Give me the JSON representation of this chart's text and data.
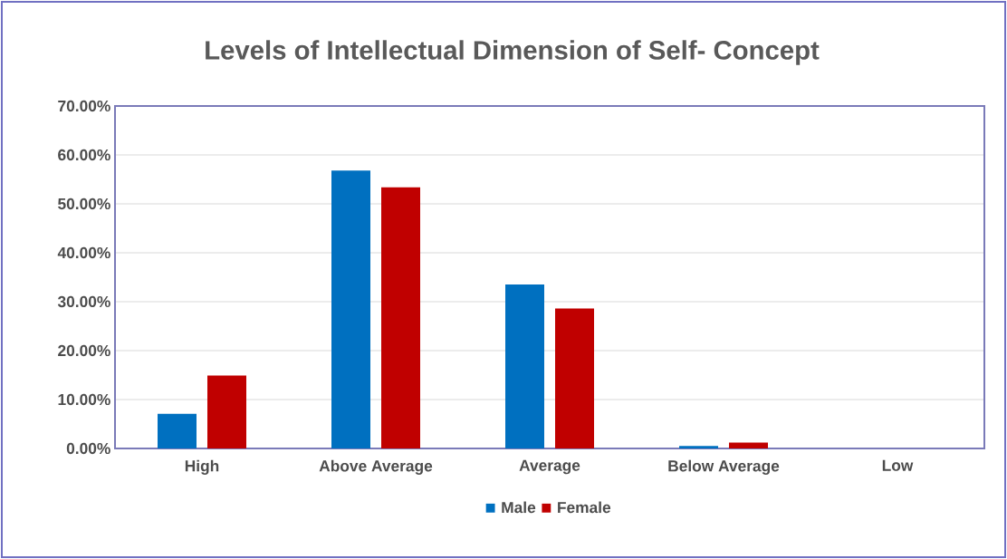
{
  "chart_data": {
    "type": "bar",
    "title": "Levels of Intellectual Dimension of Self- Concept",
    "categories": [
      "High",
      "Above Average",
      "Average",
      "Below Average",
      "Low"
    ],
    "series": [
      {
        "name": "Male",
        "color": "#0070c0",
        "values": [
          7.1,
          56.8,
          33.5,
          0.5,
          0
        ]
      },
      {
        "name": "Female",
        "color": "#c00000",
        "values": [
          14.9,
          53.4,
          28.6,
          1.2,
          0
        ]
      }
    ],
    "ylim": [
      0,
      70
    ],
    "yticks": [
      {
        "value": 0,
        "label": "0.00%"
      },
      {
        "value": 10,
        "label": "10.00%"
      },
      {
        "value": 20,
        "label": "20.00%"
      },
      {
        "value": 30,
        "label": "30.00%"
      },
      {
        "value": 40,
        "label": "40.00%"
      },
      {
        "value": 50,
        "label": "50.00%"
      },
      {
        "value": 60,
        "label": "60.00%"
      },
      {
        "value": 70,
        "label": "70.00%"
      }
    ],
    "grid": "y",
    "legend": "bottom"
  }
}
